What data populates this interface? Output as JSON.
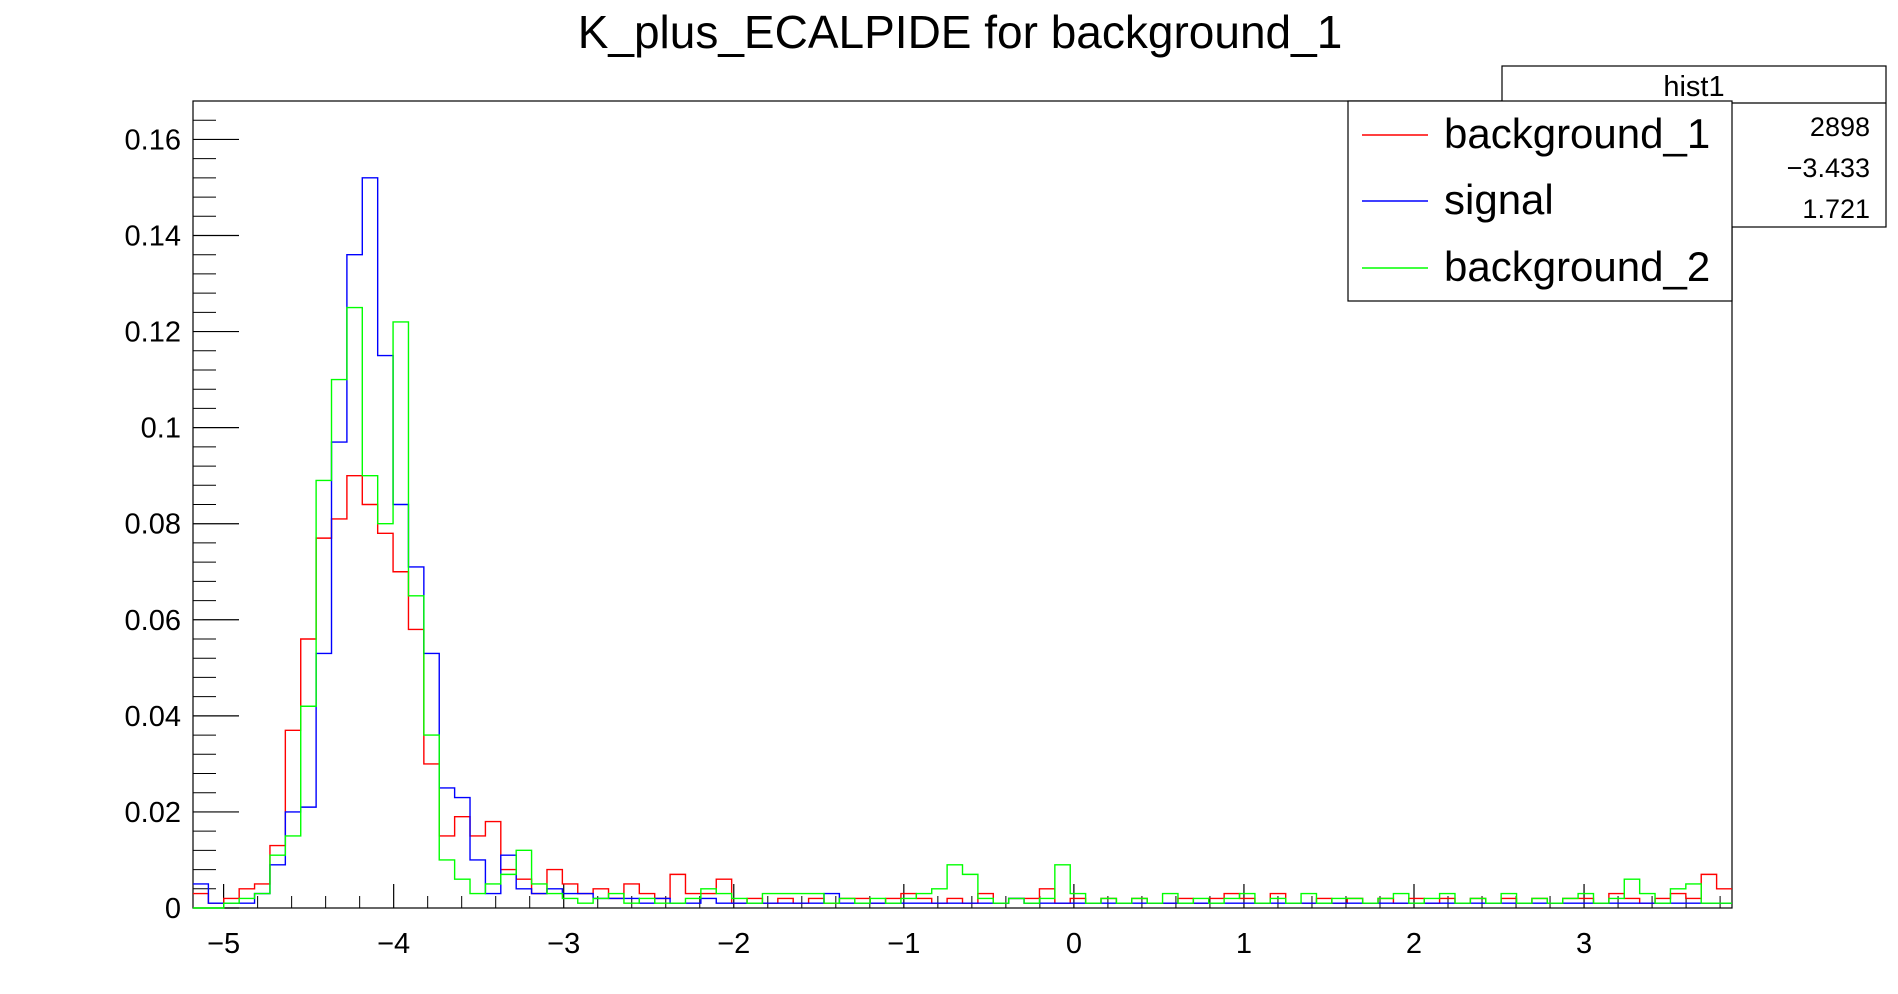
{
  "chart_data": {
    "type": "histogram",
    "title": "K_plus_ECALPIDE for background_1",
    "xlabel": "",
    "ylabel": "",
    "xlim": [
      -5.18,
      3.87
    ],
    "ylim": [
      0,
      0.168
    ],
    "x_ticks": [
      -5,
      -4,
      -3,
      -2,
      -1,
      0,
      1,
      2,
      3
    ],
    "x_tick_labels": [
      "−5",
      "−4",
      "−3",
      "−2",
      "−1",
      "0",
      "1",
      "2",
      "3"
    ],
    "y_ticks": [
      0,
      0.02,
      0.04,
      0.06,
      0.08,
      0.1,
      0.12,
      0.14,
      0.16
    ],
    "y_tick_labels": [
      "0",
      "0.02",
      "0.04",
      "0.06",
      "0.08",
      "0.1",
      "0.12",
      "0.14",
      "0.16"
    ],
    "bins": {
      "start": -5.18,
      "width": 0.0905,
      "count": 100
    },
    "grid": false,
    "legend_position": "top-right",
    "stats_box": {
      "title": "hist1",
      "rows": [
        {
          "name": "",
          "value": "2898"
        },
        {
          "name": "",
          "value": "−3.433"
        },
        {
          "name": "",
          "value": "1.721"
        }
      ]
    },
    "series": [
      {
        "name": "background_1",
        "color": "#ff0000",
        "values": [
          0.003,
          0.001,
          0.002,
          0.004,
          0.005,
          0.013,
          0.037,
          0.056,
          0.077,
          0.081,
          0.09,
          0.084,
          0.078,
          0.07,
          0.058,
          0.03,
          0.015,
          0.019,
          0.015,
          0.018,
          0.008,
          0.006,
          0.003,
          0.008,
          0.005,
          0.003,
          0.004,
          0.002,
          0.005,
          0.003,
          0.002,
          0.007,
          0.003,
          0.003,
          0.006,
          0.001,
          0.002,
          0.001,
          0.002,
          0.001,
          0.002,
          0.001,
          0.002,
          0.002,
          0.001,
          0.002,
          0.003,
          0.002,
          0.001,
          0.002,
          0.001,
          0.003,
          0.001,
          0.002,
          0.002,
          0.004,
          0.001,
          0.002,
          0.001,
          0.002,
          0.001,
          0.002,
          0.001,
          0.001,
          0.002,
          0.001,
          0.002,
          0.003,
          0.002,
          0.001,
          0.003,
          0.001,
          0.001,
          0.002,
          0.001,
          0.002,
          0.001,
          0.002,
          0.001,
          0.002,
          0.001,
          0.002,
          0.001,
          0.002,
          0.001,
          0.002,
          0.001,
          0.002,
          0.001,
          0.002,
          0.002,
          0.001,
          0.003,
          0.002,
          0.001,
          0.002,
          0.003,
          0.002,
          0.007,
          0.004
        ]
      },
      {
        "name": "signal",
        "color": "#0000ff",
        "values": [
          0.005,
          0.001,
          0.001,
          0.001,
          0.003,
          0.009,
          0.02,
          0.021,
          0.053,
          0.097,
          0.136,
          0.152,
          0.115,
          0.084,
          0.071,
          0.053,
          0.025,
          0.023,
          0.01,
          0.003,
          0.011,
          0.004,
          0.003,
          0.004,
          0.003,
          0.003,
          0.002,
          0.002,
          0.002,
          0.001,
          0.002,
          0.001,
          0.001,
          0.002,
          0.001,
          0.001,
          0.001,
          0.001,
          0.001,
          0.001,
          0.001,
          0.003,
          0.001,
          0.001,
          0.001,
          0.001,
          0.001,
          0.001,
          0.001,
          0.001,
          0.001,
          0.001,
          0.001,
          0.002,
          0.001,
          0.001,
          0.001,
          0.001,
          0.001,
          0.001,
          0.001,
          0.001,
          0.001,
          0.001,
          0.001,
          0.001,
          0.001,
          0.001,
          0.001,
          0.001,
          0.001,
          0.001,
          0.001,
          0.001,
          0.001,
          0.001,
          0.001,
          0.001,
          0.001,
          0.001,
          0.001,
          0.001,
          0.001,
          0.001,
          0.001,
          0.001,
          0.001,
          0.001,
          0.001,
          0.001,
          0.001,
          0.001,
          0.001,
          0.001,
          0.001,
          0.001,
          0.001,
          0.001,
          0.001,
          0.001
        ]
      },
      {
        "name": "background_2",
        "color": "#00ff00",
        "values": [
          0,
          0,
          0.001,
          0.002,
          0.003,
          0.011,
          0.015,
          0.042,
          0.089,
          0.11,
          0.125,
          0.09,
          0.08,
          0.122,
          0.065,
          0.036,
          0.01,
          0.006,
          0.003,
          0.005,
          0.007,
          0.012,
          0.005,
          0.003,
          0.002,
          0.001,
          0.002,
          0.003,
          0.001,
          0.002,
          0.001,
          0.001,
          0.002,
          0.004,
          0.003,
          0.002,
          0.001,
          0.003,
          0.003,
          0.003,
          0.003,
          0.001,
          0.002,
          0.001,
          0.002,
          0.001,
          0.002,
          0.003,
          0.004,
          0.009,
          0.007,
          0.002,
          0.001,
          0.002,
          0.001,
          0.002,
          0.009,
          0.003,
          0.001,
          0.002,
          0.001,
          0.002,
          0.001,
          0.003,
          0.001,
          0.002,
          0.001,
          0.002,
          0.003,
          0.001,
          0.002,
          0.001,
          0.003,
          0.001,
          0.002,
          0.002,
          0.001,
          0.002,
          0.003,
          0.001,
          0.002,
          0.003,
          0.001,
          0.002,
          0.001,
          0.003,
          0.001,
          0.002,
          0.001,
          0.002,
          0.003,
          0.001,
          0.002,
          0.006,
          0.003,
          0.001,
          0.004,
          0.005,
          0.001,
          0.001
        ]
      }
    ]
  }
}
